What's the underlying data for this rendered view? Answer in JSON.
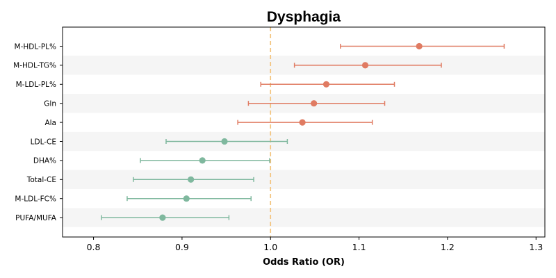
{
  "chart_data": {
    "type": "forest",
    "title": "Dysphagia",
    "xlabel": "Odds Ratio (OR)",
    "ylabel": "",
    "xlim": [
      0.765,
      1.31
    ],
    "xticks": [
      "0.8",
      "0.9",
      "1.0",
      "1.1",
      "1.2",
      "1.3"
    ],
    "reference_line": 1.0,
    "grid": false,
    "colors": {
      "risk": "#e07b62",
      "protective": "#7fb89e",
      "reference": "#f2c27a",
      "band": "#f5f5f5"
    },
    "rows": [
      {
        "label": "M-HDL-PL%",
        "or": 1.168,
        "lower": 1.079,
        "upper": 1.264,
        "group": "risk"
      },
      {
        "label": "M-HDL-TG%",
        "or": 1.107,
        "lower": 1.027,
        "upper": 1.193,
        "group": "risk"
      },
      {
        "label": "M-LDL-PL%",
        "or": 1.063,
        "lower": 0.989,
        "upper": 1.14,
        "group": "risk"
      },
      {
        "label": "Gln",
        "or": 1.049,
        "lower": 0.975,
        "upper": 1.129,
        "group": "risk"
      },
      {
        "label": "Ala",
        "or": 1.036,
        "lower": 0.963,
        "upper": 1.115,
        "group": "risk"
      },
      {
        "label": "LDL-CE",
        "or": 0.948,
        "lower": 0.882,
        "upper": 1.019,
        "group": "protective"
      },
      {
        "label": "DHA%",
        "or": 0.923,
        "lower": 0.853,
        "upper": 0.999,
        "group": "protective"
      },
      {
        "label": "Total-CE",
        "or": 0.91,
        "lower": 0.845,
        "upper": 0.981,
        "group": "protective"
      },
      {
        "label": "M-LDL-FC%",
        "or": 0.905,
        "lower": 0.838,
        "upper": 0.978,
        "group": "protective"
      },
      {
        "label": "PUFA/MUFA",
        "or": 0.878,
        "lower": 0.809,
        "upper": 0.953,
        "group": "protective"
      }
    ]
  }
}
